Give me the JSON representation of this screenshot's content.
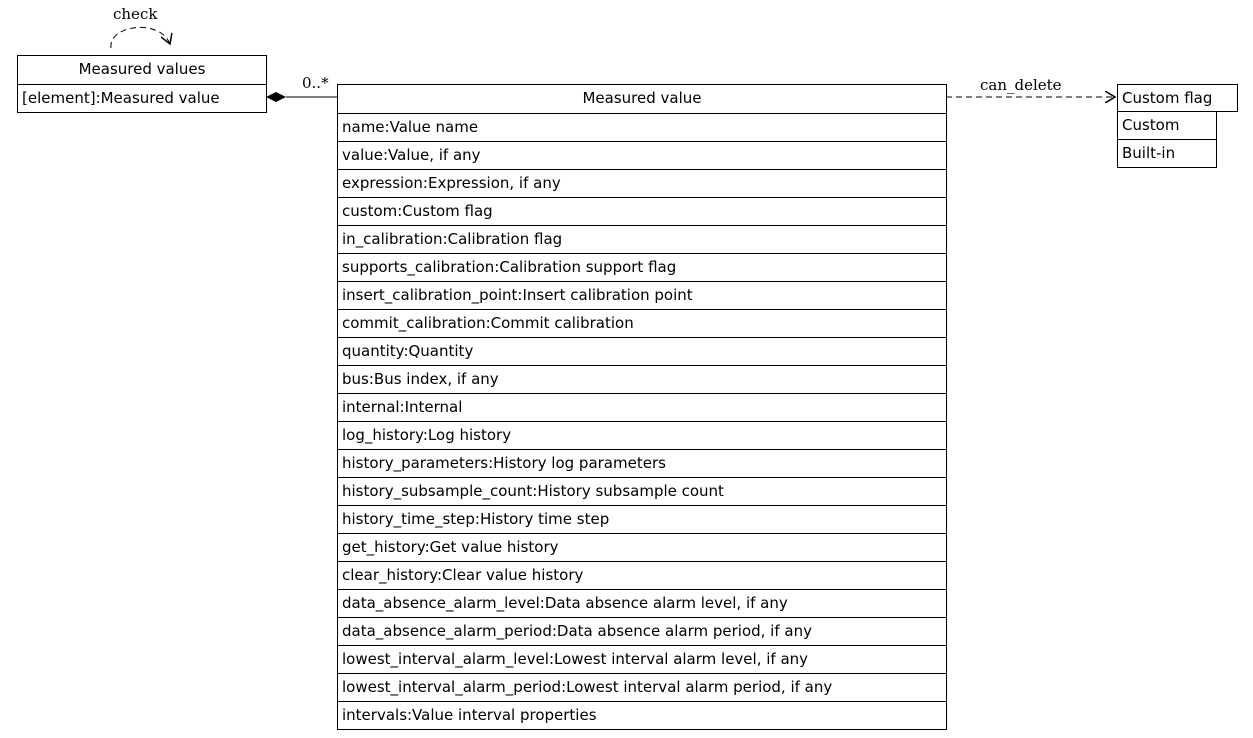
{
  "container": {
    "title": "Measured values",
    "attributes": [
      "[element]:Measured value"
    ]
  },
  "main": {
    "title": "Measured value",
    "attributes": [
      "name:Value name",
      "value:Value, if any",
      "expression:Expression, if any",
      "custom:Custom flag",
      "in_calibration:Calibration flag",
      "supports_calibration:Calibration support flag",
      "insert_calibration_point:Insert calibration point",
      "commit_calibration:Commit calibration",
      "quantity:Quantity",
      "bus:Bus index, if any",
      "internal:Internal",
      "log_history:Log history",
      "history_parameters:History log parameters",
      "history_subsample_count:History subsample count",
      "history_time_step:History time step",
      "get_history:Get value history",
      "clear_history:Clear value history",
      "data_absence_alarm_level:Data absence alarm level, if any",
      "data_absence_alarm_period:Data absence alarm period, if any",
      "lowest_interval_alarm_level:Lowest interval alarm level, if any",
      "lowest_interval_alarm_period:Lowest interval alarm period, if any",
      "intervals:Value interval properties"
    ]
  },
  "flag": {
    "title": "Custom flag",
    "values": [
      "Custom",
      "Built-in"
    ]
  },
  "edges": {
    "self_loop_label": "check",
    "composition_multiplicity": "0..*",
    "dependency_label": "can_delete"
  }
}
